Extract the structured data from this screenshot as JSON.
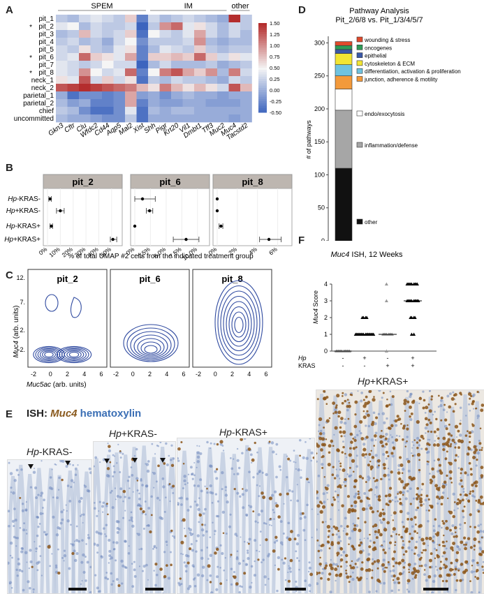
{
  "panels": {
    "A": "A",
    "B": "B",
    "C": "C",
    "D": "D",
    "E": "E",
    "F": "F"
  },
  "heatmap": {
    "groups": [
      "SPEM",
      "IM",
      "other"
    ],
    "rows": [
      "pit_1",
      "pit_2",
      "pit_3",
      "pit_4",
      "pit_5",
      "pit_6",
      "pit_7",
      "pit_8",
      "neck_1",
      "neck_2",
      "parietal_1",
      "parietal_2",
      "chief",
      "uncommitted"
    ],
    "starred": [
      "pit_2",
      "pit_6",
      "pit_8"
    ],
    "star": "*",
    "cols": [
      "Gkn3",
      "Cftr",
      "Clu",
      "Wfdc2",
      "Cd44",
      "Aqp5",
      "Mal2",
      "Xist",
      "Shh",
      "Pigr",
      "Krt20",
      "Vil1",
      "Dmbt1",
      "Tff3",
      "Muc2",
      "Muc4",
      "Tacstd2"
    ],
    "scale_ticks": [
      "1.50",
      "1.25",
      "1.00",
      "0.75",
      "0.50",
      "0.25",
      "0.00",
      "-0.25",
      "-0.50"
    ],
    "values": [
      [
        0.2,
        0.1,
        0.3,
        0.4,
        0.3,
        0.2,
        0.7,
        -0.3,
        0.3,
        0.1,
        0.2,
        0.3,
        0.2,
        0.1,
        0.0,
        1.5,
        0.2
      ],
      [
        0.4,
        0.5,
        0.1,
        0.3,
        0.2,
        0.2,
        0.3,
        -0.5,
        0.2,
        1.0,
        1.2,
        0.4,
        0.6,
        0.3,
        0.1,
        0.3,
        0.2
      ],
      [
        0.1,
        0.2,
        0.8,
        0.3,
        0.2,
        0.3,
        0.7,
        -0.4,
        0.5,
        0.3,
        0.2,
        0.4,
        0.9,
        0.3,
        0.1,
        0.3,
        0.1
      ],
      [
        0.2,
        0.3,
        0.1,
        0.2,
        0.0,
        0.3,
        0.5,
        -0.2,
        0.2,
        0.2,
        0.2,
        0.3,
        1.0,
        0.1,
        0.0,
        0.1,
        0.1
      ],
      [
        0.3,
        0.2,
        0.6,
        0.2,
        0.1,
        0.4,
        0.6,
        -0.3,
        0.1,
        0.4,
        0.3,
        0.2,
        0.7,
        0.2,
        0.1,
        0.2,
        0.2
      ],
      [
        0.3,
        0.4,
        1.2,
        0.7,
        0.6,
        0.4,
        0.9,
        -0.3,
        0.7,
        0.7,
        0.8,
        0.7,
        1.2,
        0.7,
        0.3,
        0.6,
        0.4
      ],
      [
        0.4,
        0.3,
        0.2,
        0.3,
        0.5,
        0.3,
        0.3,
        -0.5,
        0.1,
        0.3,
        0.1,
        0.1,
        0.1,
        0.2,
        0.0,
        0.1,
        0.2
      ],
      [
        0.4,
        0.3,
        1.0,
        0.5,
        0.3,
        0.4,
        1.2,
        -0.3,
        0.5,
        1.1,
        1.3,
        0.9,
        0.7,
        1.0,
        0.1,
        1.1,
        0.3
      ],
      [
        0.6,
        0.4,
        1.3,
        0.3,
        0.7,
        0.3,
        0.6,
        -0.4,
        0.2,
        0.1,
        0.3,
        0.2,
        0.2,
        0.1,
        0.0,
        0.3,
        0.2
      ],
      [
        1.3,
        1.4,
        1.5,
        1.4,
        1.3,
        1.2,
        1.1,
        0.8,
        0.6,
        1.1,
        0.8,
        0.6,
        0.8,
        0.6,
        0.3,
        1.3,
        0.8
      ],
      [
        0.0,
        -0.4,
        -0.2,
        -0.2,
        -0.3,
        -0.2,
        0.9,
        -0.1,
        0.0,
        -0.2,
        0.0,
        0.1,
        0.0,
        0.0,
        -0.1,
        0.0,
        0.0
      ],
      [
        0.1,
        -0.1,
        0.0,
        -0.3,
        -0.3,
        -0.2,
        0.9,
        -0.3,
        0.0,
        -0.1,
        -0.1,
        0.0,
        0.0,
        -0.1,
        -0.1,
        -0.1,
        0.0
      ],
      [
        0.2,
        0.1,
        -0.2,
        -0.4,
        -0.4,
        -0.2,
        0.4,
        -0.4,
        0.1,
        0.0,
        0.1,
        0.1,
        0.0,
        0.0,
        0.0,
        0.0,
        0.0
      ],
      [
        0.1,
        0.0,
        0.0,
        -0.1,
        -0.2,
        -0.2,
        0.2,
        -0.4,
        0.0,
        0.0,
        0.0,
        0.0,
        0.0,
        0.0,
        0.0,
        -0.1,
        0.0
      ]
    ]
  },
  "dotplot": {
    "row_prefix": [
      "Hp",
      "Hp",
      "Hp",
      "Hp"
    ],
    "row_suffix": [
      "-KRAS-",
      "+KRAS-",
      "-KRAS+",
      "+KRAS+"
    ],
    "xlabel": "% of total UMAP #2 cells from the indicated treatment group",
    "facets": [
      {
        "title": "pit_2",
        "ticks": [
          "0%",
          "10%",
          "20%",
          "30%",
          "40%",
          "50%"
        ],
        "max": 55,
        "points": [
          2,
          10,
          3,
          51
        ],
        "err": [
          [
            1,
            3
          ],
          [
            7,
            13
          ],
          [
            2,
            4
          ],
          [
            49,
            54
          ]
        ]
      },
      {
        "title": "pit_6",
        "ticks": [
          "0%",
          "2.5%",
          "5.0%",
          "7.5%",
          "10.0%"
        ],
        "max": 11,
        "points": [
          1.2,
          2.3,
          0,
          8
        ],
        "err": [
          [
            0,
            3.2
          ],
          [
            1.8,
            2.8
          ],
          [
            0,
            0
          ],
          [
            6,
            10
          ]
        ]
      },
      {
        "title": "pit_8",
        "ticks": [
          "0%",
          "2%",
          "4%",
          "6%"
        ],
        "max": 7.5,
        "points": [
          0,
          0,
          0.4,
          5.5
        ],
        "err": [
          [
            0,
            0
          ],
          [
            0,
            0
          ],
          [
            0.2,
            0.6
          ],
          [
            4.5,
            6.8
          ]
        ]
      }
    ]
  },
  "density": {
    "ylabel_italic": "Muc4",
    "ylabel_rest": " (arb. units)",
    "xlabel_italic": "Muc5ac",
    "xlabel_rest": " (arb. units)",
    "yticks": [
      "12.",
      "7.",
      "2.",
      "-2."
    ],
    "xticks": [
      "-2",
      "0",
      "2",
      "4",
      "6"
    ],
    "facets": [
      "pit_2",
      "pit_6",
      "pit_8"
    ]
  },
  "pathway": {
    "title_line1": "Pathway Analysis",
    "title_line2": "Pit_2/6/8 vs. Pit_1/3/4/5/7",
    "ylabel": "# of pathways",
    "yticks": [
      0,
      50,
      100,
      150,
      200,
      250,
      300
    ],
    "segments": [
      {
        "label": "other",
        "value": 110,
        "color": "#111111"
      },
      {
        "label": "inflammation/defense",
        "value": 88,
        "color": "#a6a6a6"
      },
      {
        "label": "endo/exocytosis",
        "value": 32,
        "color": "#ffffff"
      },
      {
        "label": "junction, adherence & motility",
        "value": 20,
        "color": "#f39a3b"
      },
      {
        "label": "differentiation, activation & proliferation",
        "value": 17,
        "color": "#6fc3e0"
      },
      {
        "label": "cytoskeleton & ECM",
        "value": 17,
        "color": "#f2e533"
      },
      {
        "label": "epithelial",
        "value": 6,
        "color": "#3a58a8"
      },
      {
        "label": "oncogenes",
        "value": 6,
        "color": "#2e9b57"
      },
      {
        "label": "wounding & stress",
        "value": 6,
        "color": "#e04a2c"
      }
    ]
  },
  "muc4score": {
    "title_italic": "Muc4",
    "title_rest": " ISH, 12 Weeks",
    "ylabel_italic": "Muc4",
    "ylabel_rest": " Score",
    "yticks": [
      0,
      1,
      2,
      3,
      4
    ],
    "hp_label": "Hp",
    "kras_label": "KRAS",
    "hp_signs": [
      "-",
      "+",
      "-",
      "+"
    ],
    "kras_signs": [
      "-",
      "-",
      "+",
      "+"
    ],
    "medians": [
      0,
      1,
      1,
      3
    ],
    "colors": [
      "#999999",
      "#000000",
      "#999999",
      "#000000"
    ]
  },
  "ish": {
    "title_prefix": "ISH: ",
    "title_gene": "Muc4",
    "title_stain": " hematoxylin",
    "gene_color": "#8a5a1e",
    "stain_color": "#3b6fb5",
    "images": [
      {
        "label_italic": "Hp",
        "label_rest": "-KRAS-"
      },
      {
        "label_italic": "Hp",
        "label_rest": "+KRAS-"
      },
      {
        "label_italic": "Hp",
        "label_rest": "-KRAS+"
      },
      {
        "label_italic": "Hp",
        "label_rest": "+KRAS+"
      }
    ]
  }
}
